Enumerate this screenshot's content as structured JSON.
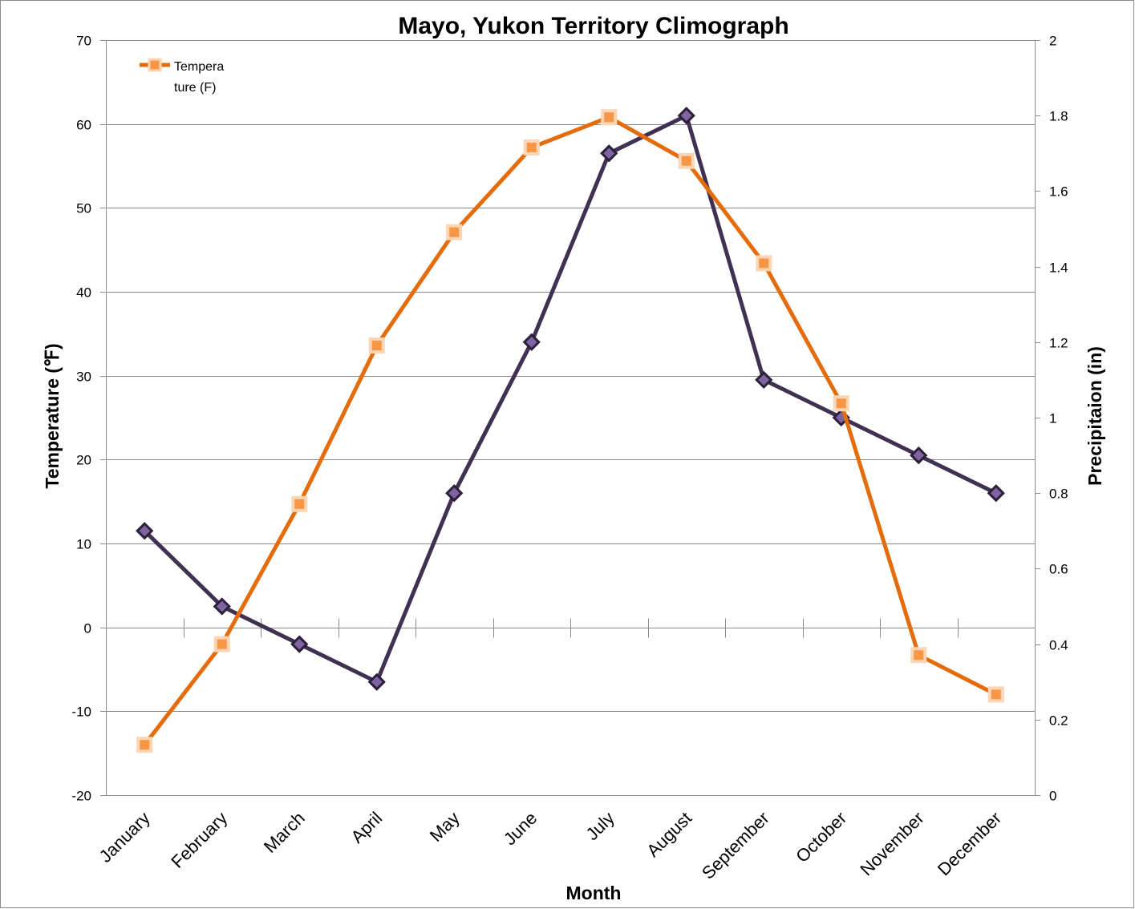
{
  "chart_data": {
    "type": "line",
    "title": "Mayo, Yukon Territory Climograph",
    "xlabel": "Month",
    "ylabel": "Temperature  (℉)",
    "y2label": "Precipitaion (in)",
    "categories": [
      "January",
      "February",
      "March",
      "April",
      "May",
      "June",
      "July",
      "August",
      "September",
      "October",
      "November",
      "December"
    ],
    "ylim": [
      -20,
      70
    ],
    "yticks": [
      -20,
      -10,
      0,
      10,
      20,
      30,
      40,
      50,
      60,
      70
    ],
    "y2lim": [
      0,
      2
    ],
    "y2ticks": [
      0,
      0.2,
      0.4,
      0.6,
      0.8,
      1,
      1.2,
      1.4,
      1.6,
      1.8,
      2
    ],
    "y2tick_labels": [
      "0",
      "0.2",
      "0.4",
      "0.6",
      "0.8",
      "1",
      "1.2",
      "1.4",
      "1.6",
      "1.8",
      "2"
    ],
    "grid": true,
    "legend_position": "top-left",
    "series": [
      {
        "name": "Temperature (F)",
        "legend_lines": [
          "Tempera",
          "ture (F)"
        ],
        "axis": "left",
        "color": "#e46c0a",
        "marker": "square",
        "marker_fill": "#f79646",
        "marker_edge": "#fcd5b4",
        "values": [
          -14,
          -2,
          14.7,
          33.6,
          47.1,
          57.2,
          60.8,
          55.6,
          43.4,
          26.7,
          -3.3,
          -8
        ]
      },
      {
        "name": "Precipitation (in)",
        "axis": "right",
        "color": "#403152",
        "marker": "diamond",
        "marker_fill": "#8064a2",
        "marker_edge": "#2b1f3a",
        "values": [
          0.7,
          0.5,
          0.4,
          0.3,
          0.8,
          1.2,
          1.7,
          1.8,
          1.1,
          1.0,
          0.9,
          0.8
        ]
      }
    ]
  }
}
